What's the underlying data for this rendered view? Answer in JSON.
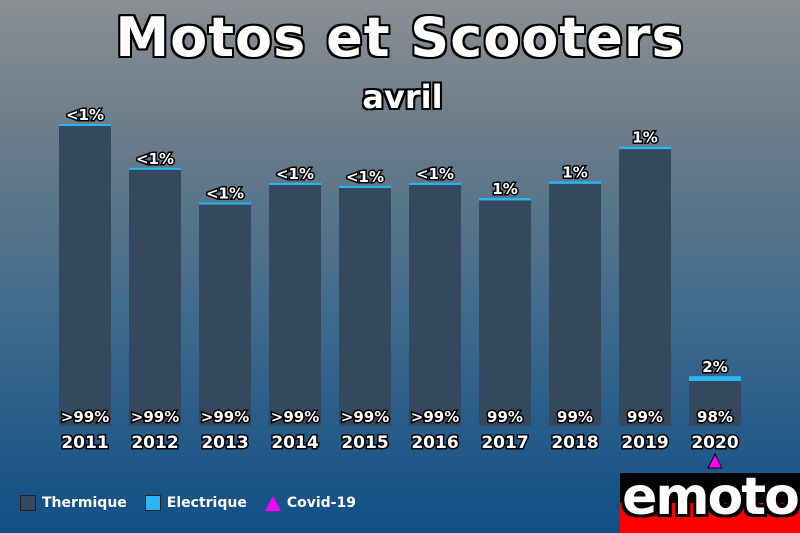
{
  "title": "Motos et Scooters",
  "subtitle": "avril",
  "colors": {
    "thermique": "#34495e",
    "electrique": "#29b6f6",
    "covid": "#ff00ff",
    "logo_top": "#000000",
    "logo_bottom": "#ff0000"
  },
  "legend": {
    "thermique": "Thermique",
    "electrique": "Electrique",
    "covid": "Covid-19"
  },
  "logo": {
    "text": "emoto"
  },
  "chart_data": {
    "type": "bar",
    "stacked": true,
    "categories": [
      "2011",
      "2012",
      "2013",
      "2014",
      "2015",
      "2016",
      "2017",
      "2018",
      "2019",
      "2020"
    ],
    "series": [
      {
        "name": "Thermique",
        "labels": [
          ">99%",
          ">99%",
          ">99%",
          ">99%",
          ">99%",
          ">99%",
          "99%",
          "99%",
          "99%",
          "98%"
        ]
      },
      {
        "name": "Electrique",
        "labels": [
          "<1%",
          "<1%",
          "<1%",
          "<1%",
          "<1%",
          "<1%",
          "1%",
          "1%",
          "1%",
          "2%"
        ]
      }
    ],
    "totals_relative": [
      100,
      85.5,
      74,
      80.5,
      79.5,
      80.5,
      75.5,
      81,
      92.5,
      16.5
    ],
    "electric_share": [
      0.4,
      0.4,
      0.4,
      0.4,
      0.4,
      0.4,
      0.8,
      0.8,
      0.8,
      1.6
    ],
    "markers": [
      {
        "category": "2020",
        "label": "Covid-19"
      }
    ],
    "ylim": [
      0,
      100
    ],
    "grid": false,
    "legend_position": "bottom-left"
  }
}
